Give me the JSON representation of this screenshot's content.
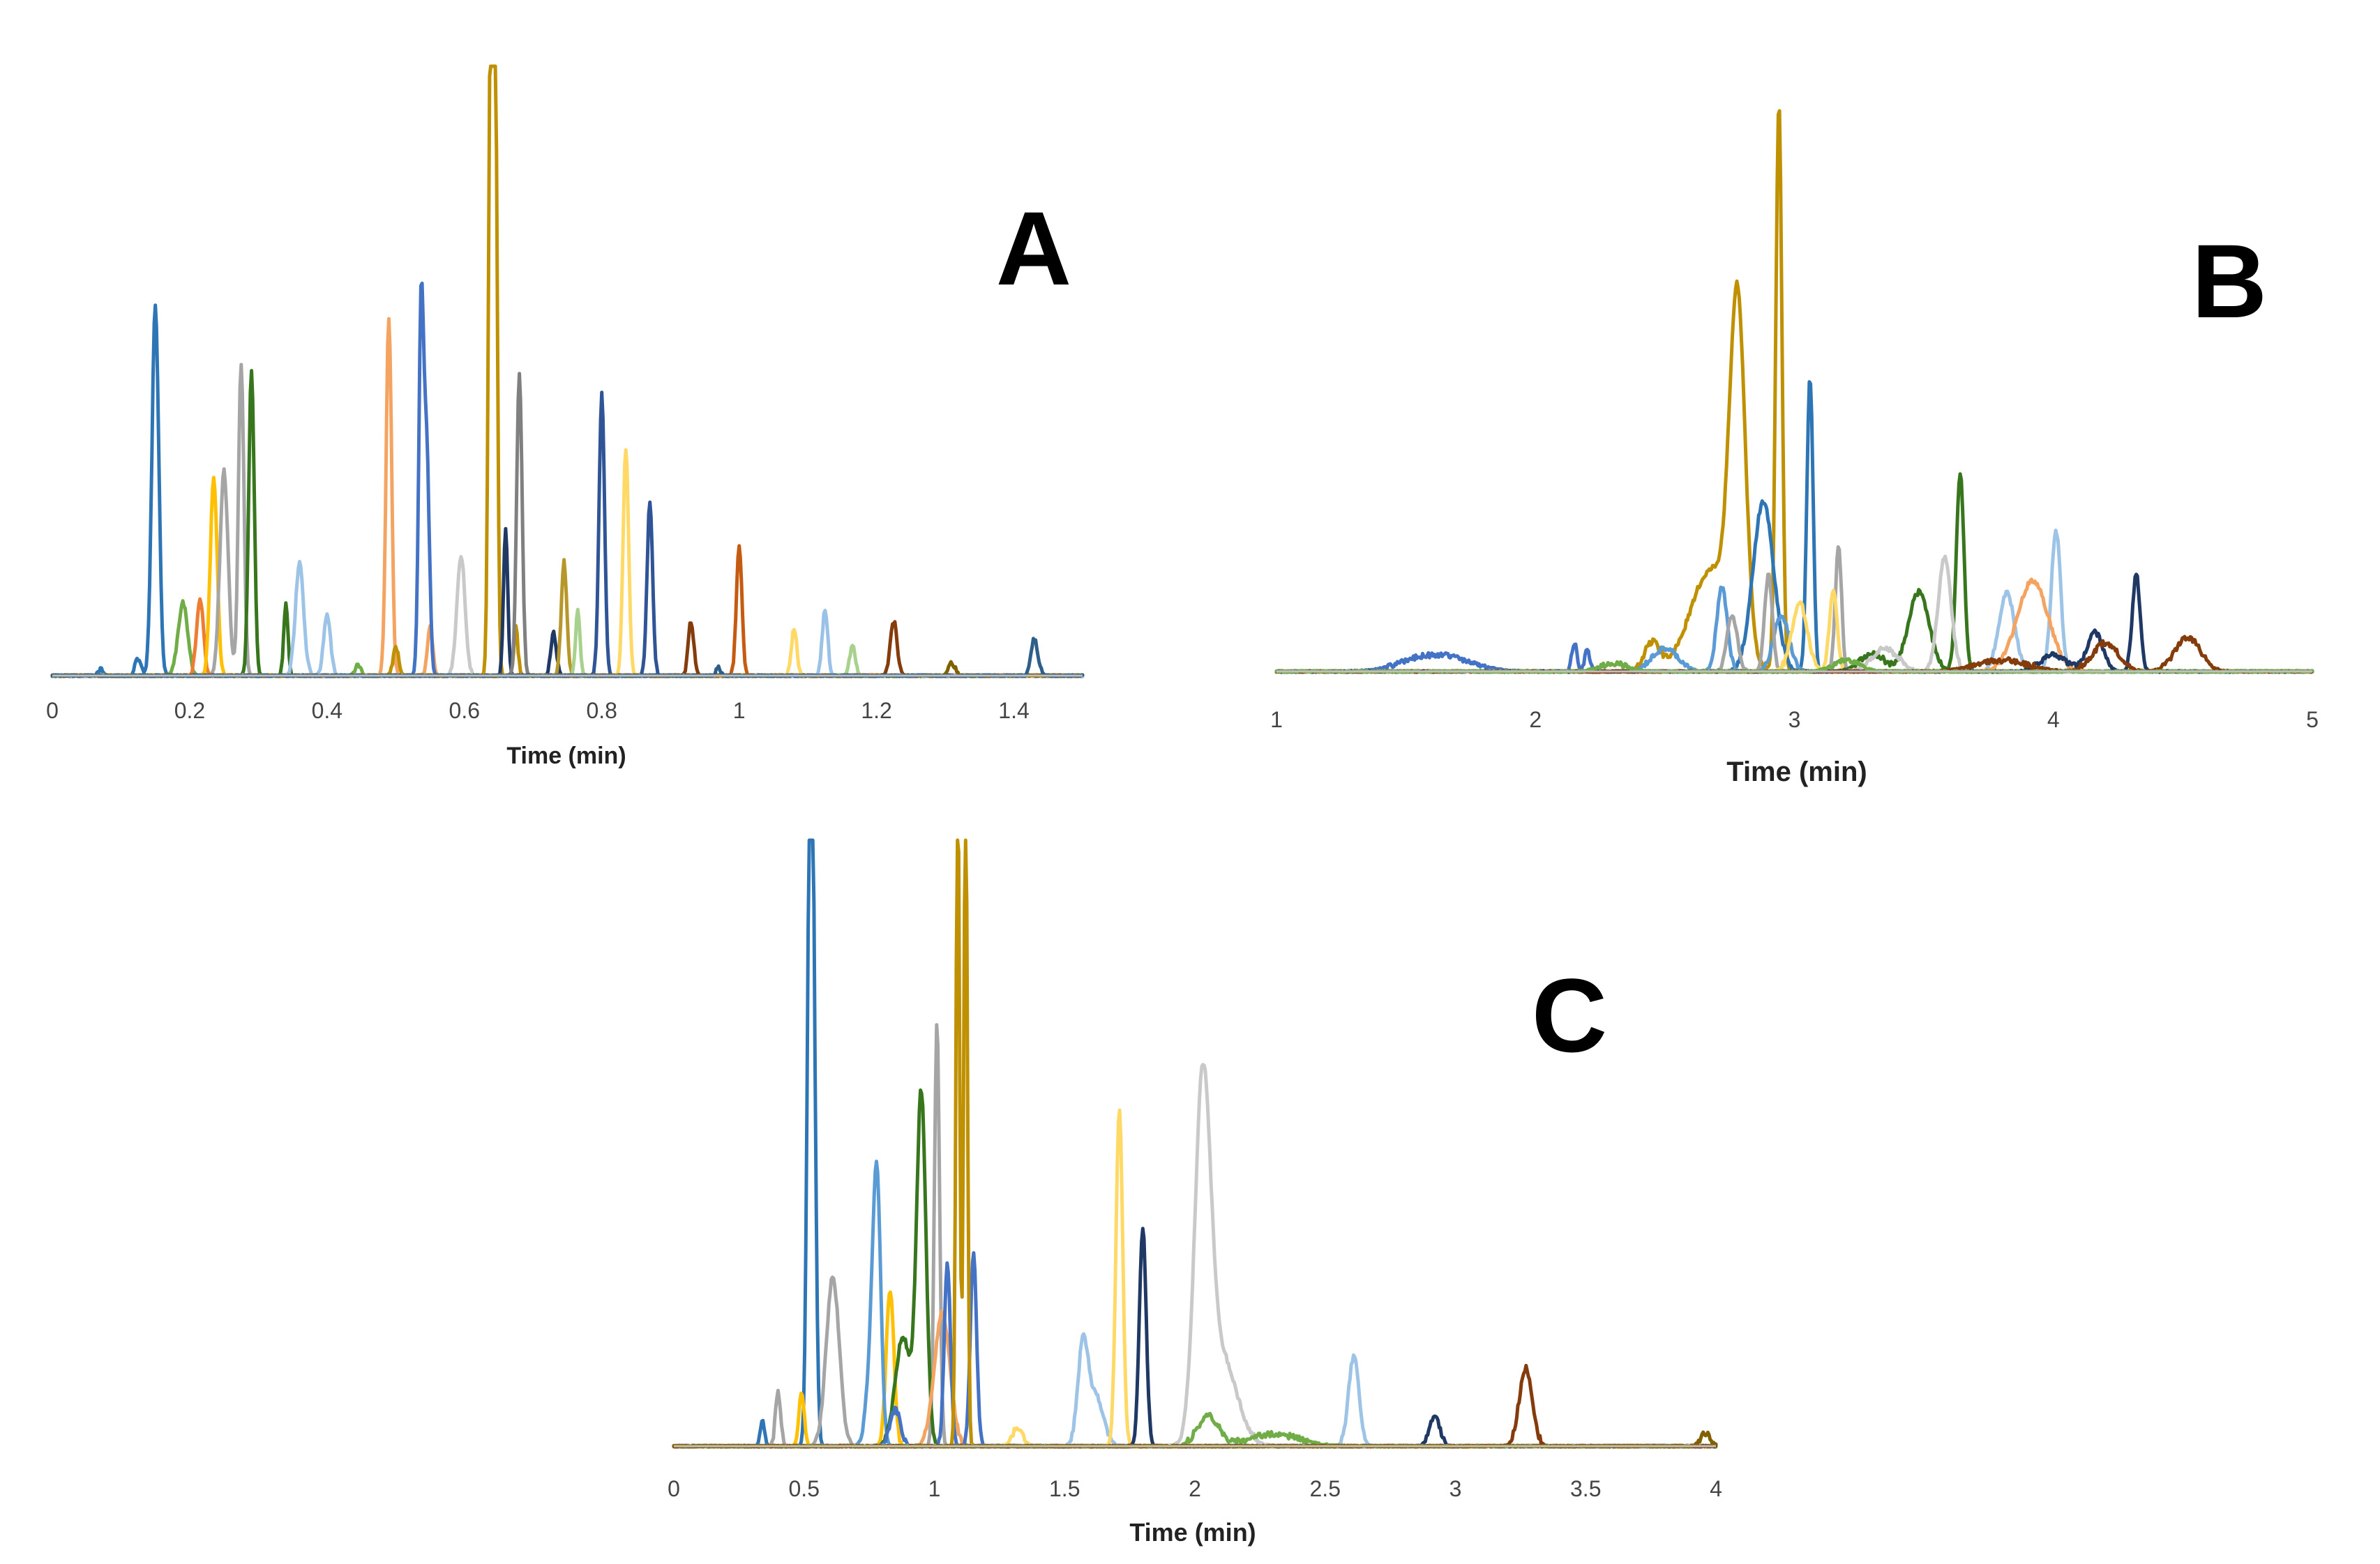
{
  "chart_data": [
    {
      "type": "line",
      "panel": "A",
      "panel_label": "A",
      "xlabel": "Time (min)",
      "ylabel": "",
      "xlim": [
        0,
        1.5
      ],
      "ylim": [
        0,
        100
      ],
      "x_ticks": [
        0,
        0.2,
        0.4,
        0.6,
        0.8,
        1,
        1.2,
        1.4
      ],
      "x_tick_labels": [
        "0",
        "0.2",
        "0.4",
        "0.6",
        "0.8",
        "1",
        "1.2",
        "1.4"
      ],
      "series": [
        {
          "color": "#2e75b6",
          "peaks": [
            [
              0.15,
              62,
              0.005
            ],
            [
              0.125,
              3,
              0.004
            ],
            [
              0.07,
              1,
              0.004
            ]
          ]
        },
        {
          "color": "#70ad47",
          "peaks": [
            [
              0.19,
              12,
              0.007
            ],
            [
              0.445,
              2,
              0.004
            ]
          ]
        },
        {
          "color": "#ed7d31",
          "peaks": [
            [
              0.215,
              13,
              0.005
            ]
          ]
        },
        {
          "color": "#ffc000",
          "peaks": [
            [
              0.235,
              33,
              0.005
            ]
          ]
        },
        {
          "color": "#a5a5a5",
          "peaks": [
            [
              0.25,
              34,
              0.006
            ],
            [
              0.275,
              52,
              0.004
            ]
          ]
        },
        {
          "color": "#38761d",
          "peaks": [
            [
              0.29,
              51,
              0.004
            ],
            [
              0.34,
              12,
              0.003
            ]
          ]
        },
        {
          "color": "#9dc3e6",
          "peaks": [
            [
              0.36,
              19,
              0.006
            ],
            [
              0.4,
              10,
              0.005
            ]
          ]
        },
        {
          "color": "#f4a460",
          "peaks": [
            [
              0.49,
              60,
              0.004
            ],
            [
              0.55,
              8,
              0.004
            ]
          ]
        },
        {
          "color": "#4472c4",
          "peaks": [
            [
              0.537,
              61,
              0.0035
            ],
            [
              0.545,
              37,
              0.004
            ]
          ]
        },
        {
          "color": "#bf9000",
          "peaks": [
            [
              0.638,
              108,
              0.003
            ],
            [
              0.645,
              100,
              0.003
            ],
            [
              0.5,
              5,
              0.004
            ],
            [
              0.675,
              8,
              0.003
            ]
          ]
        },
        {
          "color": "#c9c9c9",
          "peaks": [
            [
              0.595,
              20,
              0.006
            ]
          ]
        },
        {
          "color": "#1f3864",
          "peaks": [
            [
              0.66,
              25,
              0.003
            ],
            [
              0.73,
              7,
              0.004
            ]
          ]
        },
        {
          "color": "#808080",
          "peaks": [
            [
              0.68,
              50,
              0.004
            ]
          ]
        },
        {
          "color": "#b8972a",
          "peaks": [
            [
              0.745,
              19,
              0.004
            ]
          ]
        },
        {
          "color": "#a9d18e",
          "peaks": [
            [
              0.765,
              11,
              0.003
            ],
            [
              1.165,
              5,
              0.004
            ]
          ]
        },
        {
          "color": "#2f5597",
          "peaks": [
            [
              0.8,
              47,
              0.004
            ],
            [
              0.87,
              29,
              0.004
            ]
          ]
        },
        {
          "color": "#ffd966",
          "peaks": [
            [
              0.835,
              38,
              0.004
            ],
            [
              1.08,
              8,
              0.004
            ]
          ]
        },
        {
          "color": "#843c0c",
          "peaks": [
            [
              0.93,
              9,
              0.004
            ],
            [
              1.225,
              9,
              0.005
            ]
          ]
        },
        {
          "color": "#c55a11",
          "peaks": [
            [
              1.0,
              22,
              0.004
            ]
          ]
        },
        {
          "color": "#9bc2e6",
          "peaks": [
            [
              1.125,
              11,
              0.004
            ]
          ]
        },
        {
          "color": "#806000",
          "peaks": [
            [
              1.31,
              2,
              0.005
            ]
          ]
        },
        {
          "color": "#2e5f8a",
          "peaks": [
            [
              1.43,
              6,
              0.005
            ],
            [
              0.97,
              1.5,
              0.003
            ]
          ]
        }
      ]
    },
    {
      "type": "line",
      "panel": "B",
      "panel_label": "B",
      "xlabel": "Time (min)",
      "ylabel": "",
      "xlim": [
        1,
        5
      ],
      "ylim": [
        0,
        100
      ],
      "x_ticks": [
        1,
        2,
        3,
        4,
        5
      ],
      "x_tick_labels": [
        "1",
        "2",
        "3",
        "4",
        "5"
      ],
      "series": [
        {
          "color": "#4472c4",
          "peaks": [
            [
              1.62,
              3,
              0.12
            ],
            [
              2.15,
              5,
              0.01
            ],
            [
              2.2,
              4,
              0.01
            ]
          ]
        },
        {
          "color": "#bf9000",
          "peaks": [
            [
              2.78,
              60,
              0.03
            ],
            [
              2.68,
              18,
              0.08
            ],
            [
              2.45,
              5,
              0.03
            ],
            [
              2.94,
              100,
              0.012
            ]
          ]
        },
        {
          "color": "#2e75b6",
          "peaks": [
            [
              2.88,
              30,
              0.04
            ],
            [
              3.06,
              52,
              0.012
            ]
          ]
        },
        {
          "color": "#5b9bd5",
          "peaks": [
            [
              2.72,
              15,
              0.02
            ],
            [
              2.95,
              10,
              0.03
            ],
            [
              2.5,
              4,
              0.05
            ]
          ]
        },
        {
          "color": "#a5a5a5",
          "peaks": [
            [
              2.9,
              17,
              0.015
            ],
            [
              3.17,
              22,
              0.012
            ],
            [
              2.76,
              10,
              0.02
            ]
          ]
        },
        {
          "color": "#ffd966",
          "peaks": [
            [
              3.02,
              12,
              0.03
            ],
            [
              3.15,
              14,
              0.015
            ]
          ]
        },
        {
          "color": "#38761d",
          "peaks": [
            [
              3.48,
              14,
              0.04
            ],
            [
              3.64,
              35,
              0.015
            ],
            [
              3.3,
              3,
              0.05
            ]
          ]
        },
        {
          "color": "#c9c9c9",
          "peaks": [
            [
              3.58,
              20,
              0.025
            ],
            [
              3.35,
              4,
              0.05
            ]
          ]
        },
        {
          "color": "#9dc3e6",
          "peaks": [
            [
              4.01,
              25,
              0.018
            ],
            [
              3.82,
              14,
              0.03
            ]
          ]
        },
        {
          "color": "#f4a460",
          "peaks": [
            [
              3.92,
              16,
              0.06
            ]
          ]
        },
        {
          "color": "#1f3864",
          "peaks": [
            [
              4.32,
              17,
              0.015
            ],
            [
              4.16,
              7,
              0.03
            ],
            [
              4.0,
              3,
              0.05
            ]
          ]
        },
        {
          "color": "#843c0c",
          "peaks": [
            [
              4.52,
              6,
              0.05
            ],
            [
              4.2,
              5,
              0.05
            ],
            [
              3.8,
              2,
              0.1
            ]
          ]
        },
        {
          "color": "#70ad47",
          "peaks": [
            [
              2.3,
              1.5,
              0.05
            ],
            [
              3.2,
              2,
              0.05
            ]
          ]
        }
      ]
    },
    {
      "type": "line",
      "panel": "C",
      "panel_label": "C",
      "xlabel": "Time (min)",
      "ylabel": "",
      "xlim": [
        0,
        4
      ],
      "ylim": [
        0,
        100
      ],
      "x_ticks": [
        0,
        0.5,
        1,
        1.5,
        2,
        2.5,
        3,
        3.5,
        4
      ],
      "x_tick_labels": [
        "0",
        "0.5",
        "1",
        "1.5",
        "2",
        "2.5",
        "3",
        "3.5",
        "4"
      ],
      "series": [
        {
          "color": "#2e75b6",
          "peaks": [
            [
              0.53,
              100,
              0.012
            ],
            [
              0.52,
              42,
              0.01
            ],
            [
              0.34,
              4,
              0.008
            ]
          ]
        },
        {
          "color": "#a5a5a5",
          "peaks": [
            [
              0.61,
              28,
              0.025
            ],
            [
              1.01,
              70,
              0.01
            ],
            [
              0.4,
              9,
              0.01
            ]
          ]
        },
        {
          "color": "#ffc000",
          "peaks": [
            [
              0.49,
              9,
              0.01
            ],
            [
              0.83,
              26,
              0.015
            ]
          ]
        },
        {
          "color": "#5b9bd5",
          "peaks": [
            [
              0.78,
              38,
              0.015
            ],
            [
              0.76,
              14,
              0.02
            ]
          ]
        },
        {
          "color": "#38761d",
          "peaks": [
            [
              0.95,
              58,
              0.018
            ],
            [
              0.88,
              18,
              0.03
            ]
          ]
        },
        {
          "color": "#f4a460",
          "peaks": [
            [
              1.03,
              22,
              0.03
            ]
          ]
        },
        {
          "color": "#4472c4",
          "peaks": [
            [
              1.05,
              30,
              0.012
            ],
            [
              1.15,
              32,
              0.012
            ],
            [
              0.85,
              6,
              0.02
            ]
          ]
        },
        {
          "color": "#bf9000",
          "peaks": [
            [
              1.09,
              110,
              0.007
            ],
            [
              1.12,
              110,
              0.007
            ]
          ]
        },
        {
          "color": "#9dc3e6",
          "peaks": [
            [
              1.57,
              16,
              0.02
            ],
            [
              1.62,
              8,
              0.03
            ],
            [
              2.61,
              15,
              0.02
            ]
          ]
        },
        {
          "color": "#ffd966",
          "peaks": [
            [
              1.71,
              56,
              0.013
            ],
            [
              1.32,
              3,
              0.02
            ]
          ]
        },
        {
          "color": "#1f3864",
          "peaks": [
            [
              1.8,
              36,
              0.013
            ],
            [
              2.92,
              5,
              0.02
            ]
          ]
        },
        {
          "color": "#c9c9c9",
          "peaks": [
            [
              2.03,
              56,
              0.03
            ],
            [
              2.1,
              15,
              0.06
            ]
          ]
        },
        {
          "color": "#70ad47",
          "peaks": [
            [
              2.05,
              5,
              0.04
            ],
            [
              2.3,
              2,
              0.1
            ]
          ]
        },
        {
          "color": "#843c0c",
          "peaks": [
            [
              3.27,
              13,
              0.025
            ]
          ]
        },
        {
          "color": "#806000",
          "peaks": [
            [
              3.96,
              2,
              0.02
            ]
          ]
        }
      ]
    }
  ]
}
